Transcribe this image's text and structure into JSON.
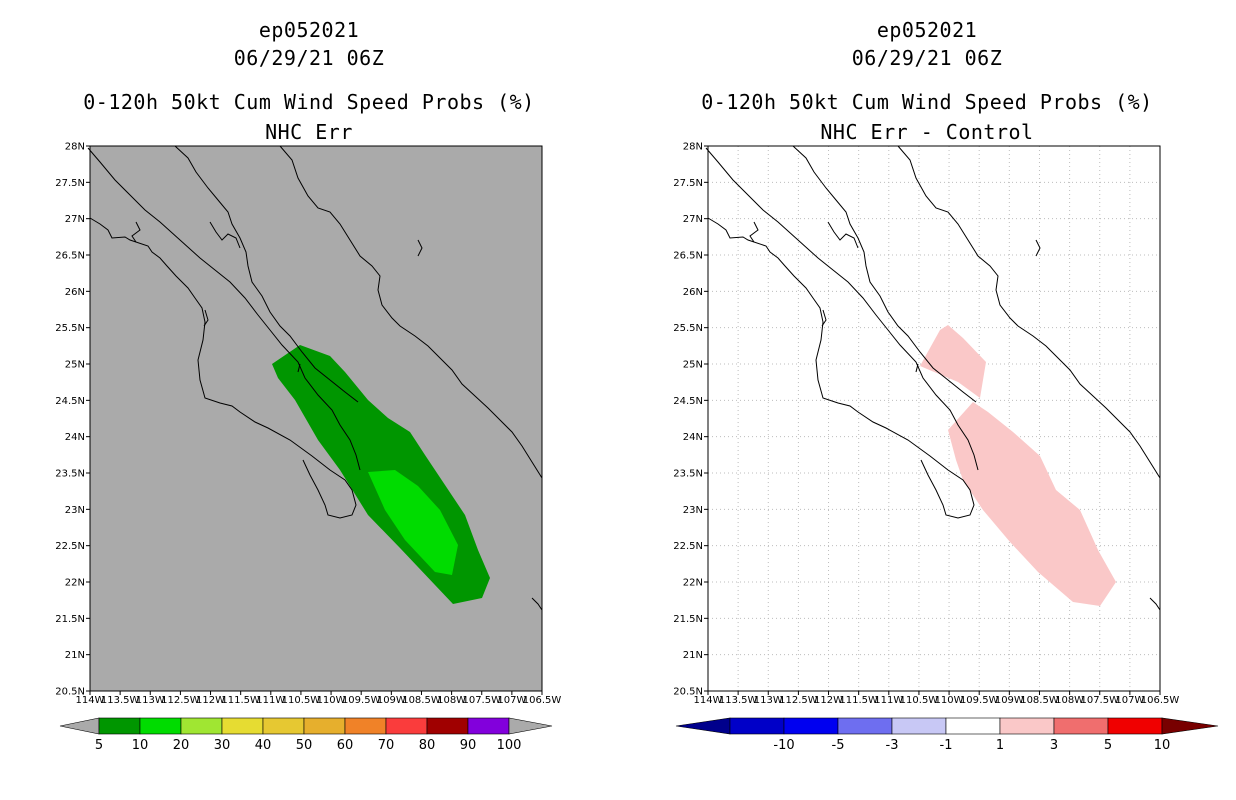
{
  "panels": [
    {
      "storm_id": "ep052021",
      "datetime": "06/29/21 06Z",
      "product": "0-120h 50kt Cum Wind Speed Probs (%)",
      "subtitle": "NHC Err",
      "background_color": "#aaaaaa",
      "gridlines": false,
      "legend_labels": [
        "5",
        "10",
        "20",
        "30",
        "40",
        "50",
        "60",
        "70",
        "80",
        "90",
        "100"
      ],
      "legend_colors": [
        "#009600",
        "#00dc00",
        "#a0e632",
        "#e6dc32",
        "#e6c832",
        "#e6af2d",
        "#f08228",
        "#fa3c3c",
        "#a00000",
        "#8200dc"
      ]
    },
    {
      "storm_id": "ep052021",
      "datetime": "06/29/21 06Z",
      "product": "0-120h 50kt Cum Wind Speed Probs (%)",
      "subtitle": "NHC Err - Control",
      "background_color": "#ffffff",
      "gridlines": true,
      "legend_labels": [
        "-10",
        "-5",
        "-3",
        "-1",
        "1",
        "3",
        "5",
        "10"
      ],
      "legend_colors": [
        "#0000c8",
        "#0000f0",
        "#6e6ef0",
        "#c8c8f5",
        "#ffffff",
        "#fac8c8",
        "#f06e6e",
        "#f00000"
      ],
      "legend_end_colors": [
        "#00008c",
        "#780000"
      ]
    }
  ],
  "map": {
    "lat_labels": [
      "28N",
      "27.5N",
      "27N",
      "26.5N",
      "26N",
      "25.5N",
      "25N",
      "24.5N",
      "24N",
      "23.5N",
      "23N",
      "22.5N",
      "22N",
      "21.5N",
      "21N",
      "20.5N"
    ],
    "lon_labels": [
      "114W",
      "113.5W",
      "113W",
      "112.5W",
      "112W",
      "111.5W",
      "111W",
      "110.5W",
      "110W",
      "109.5W",
      "109W",
      "108.5W",
      "108W",
      "107.5W",
      "107W",
      "106.5W"
    ]
  }
}
